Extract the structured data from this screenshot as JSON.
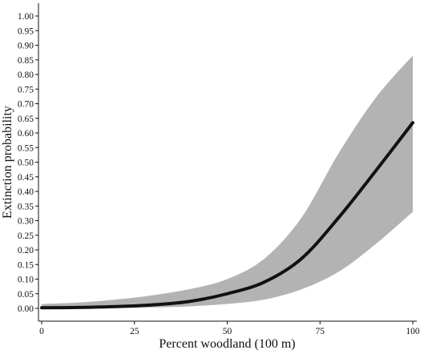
{
  "chart_data": {
    "type": "line",
    "title": "",
    "xlabel": "Percent woodland (100 m)",
    "ylabel": "Extinction probability",
    "xlim": [
      0,
      100
    ],
    "ylim": [
      0,
      1.0
    ],
    "x_ticks": [
      "0",
      "25",
      "50",
      "75",
      "100"
    ],
    "y_ticks": [
      "0.00",
      "0.05",
      "0.10",
      "0.15",
      "0.20",
      "0.25",
      "0.30",
      "0.35",
      "0.40",
      "0.45",
      "0.50",
      "0.55",
      "0.60",
      "0.65",
      "0.70",
      "0.75",
      "0.80",
      "0.85",
      "0.90",
      "0.95",
      "1.00"
    ],
    "grid": false,
    "legend": "none",
    "colors": {
      "line": "#111111",
      "band": "#b3b3b3"
    },
    "series": [
      {
        "x": [
          0,
          10,
          20,
          30,
          40,
          50,
          60,
          70,
          80,
          90,
          100
        ],
        "values": [
          0.002,
          0.003,
          0.006,
          0.012,
          0.024,
          0.05,
          0.09,
          0.17,
          0.31,
          0.47,
          0.635
        ],
        "lower": [
          0.0,
          0.0,
          0.001,
          0.003,
          0.007,
          0.015,
          0.03,
          0.065,
          0.125,
          0.22,
          0.33
        ],
        "upper": [
          0.015,
          0.02,
          0.03,
          0.045,
          0.066,
          0.1,
          0.17,
          0.31,
          0.53,
          0.72,
          0.865
        ]
      }
    ]
  }
}
